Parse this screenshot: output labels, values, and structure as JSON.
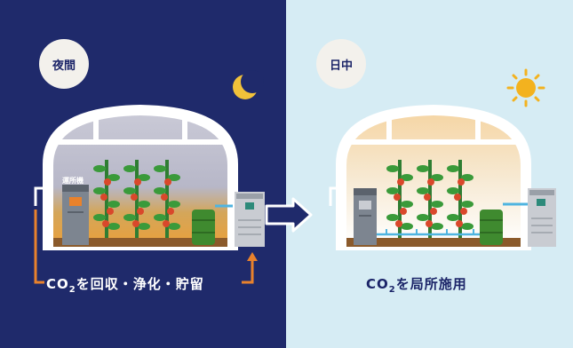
{
  "night": {
    "badge": "夜間",
    "device_label": "運所機",
    "caption_prefix": "CO",
    "caption_sub": "2",
    "caption_rest": "を回収・浄化・貯留"
  },
  "day": {
    "badge": "日中",
    "caption_prefix": "CO",
    "caption_sub": "2",
    "caption_rest": "を局所施用"
  },
  "icons": {
    "moon": "moon-icon",
    "sun": "sun-icon",
    "arrow": "arrow-right-icon"
  },
  "colors": {
    "night_bg": "#1f2a6b",
    "day_bg": "#d6ecf4",
    "orange": "#e9822c",
    "navy": "#1b2468",
    "green_tank": "#3f8a2f",
    "soil": "#8b5a2b"
  }
}
